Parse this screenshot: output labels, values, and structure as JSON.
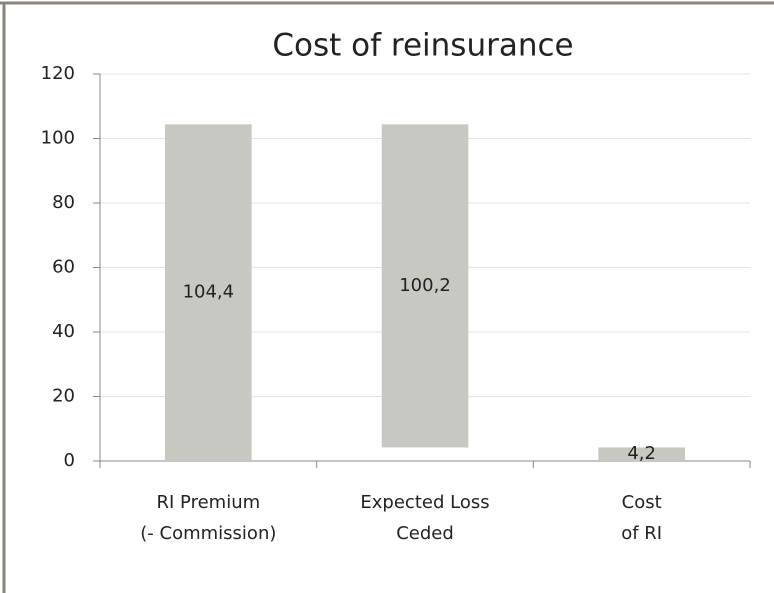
{
  "chart_data": {
    "type": "waterfall",
    "title": "Cost of reinsurance",
    "categories": [
      [
        "RI Premium",
        "(- Commission)"
      ],
      [
        "Expected Loss",
        "Ceded"
      ],
      [
        "Cost",
        "of RI"
      ]
    ],
    "measure": [
      "total",
      "decrease",
      "total"
    ],
    "values": [
      104.4,
      100.2,
      4.2
    ],
    "value_labels": [
      "104,4",
      "100,2",
      "4,2"
    ],
    "color": "#c8c8c3",
    "ylim": [
      0,
      120
    ],
    "yticks": [
      0,
      20,
      40,
      60,
      80,
      100,
      120
    ],
    "grid": true
  }
}
